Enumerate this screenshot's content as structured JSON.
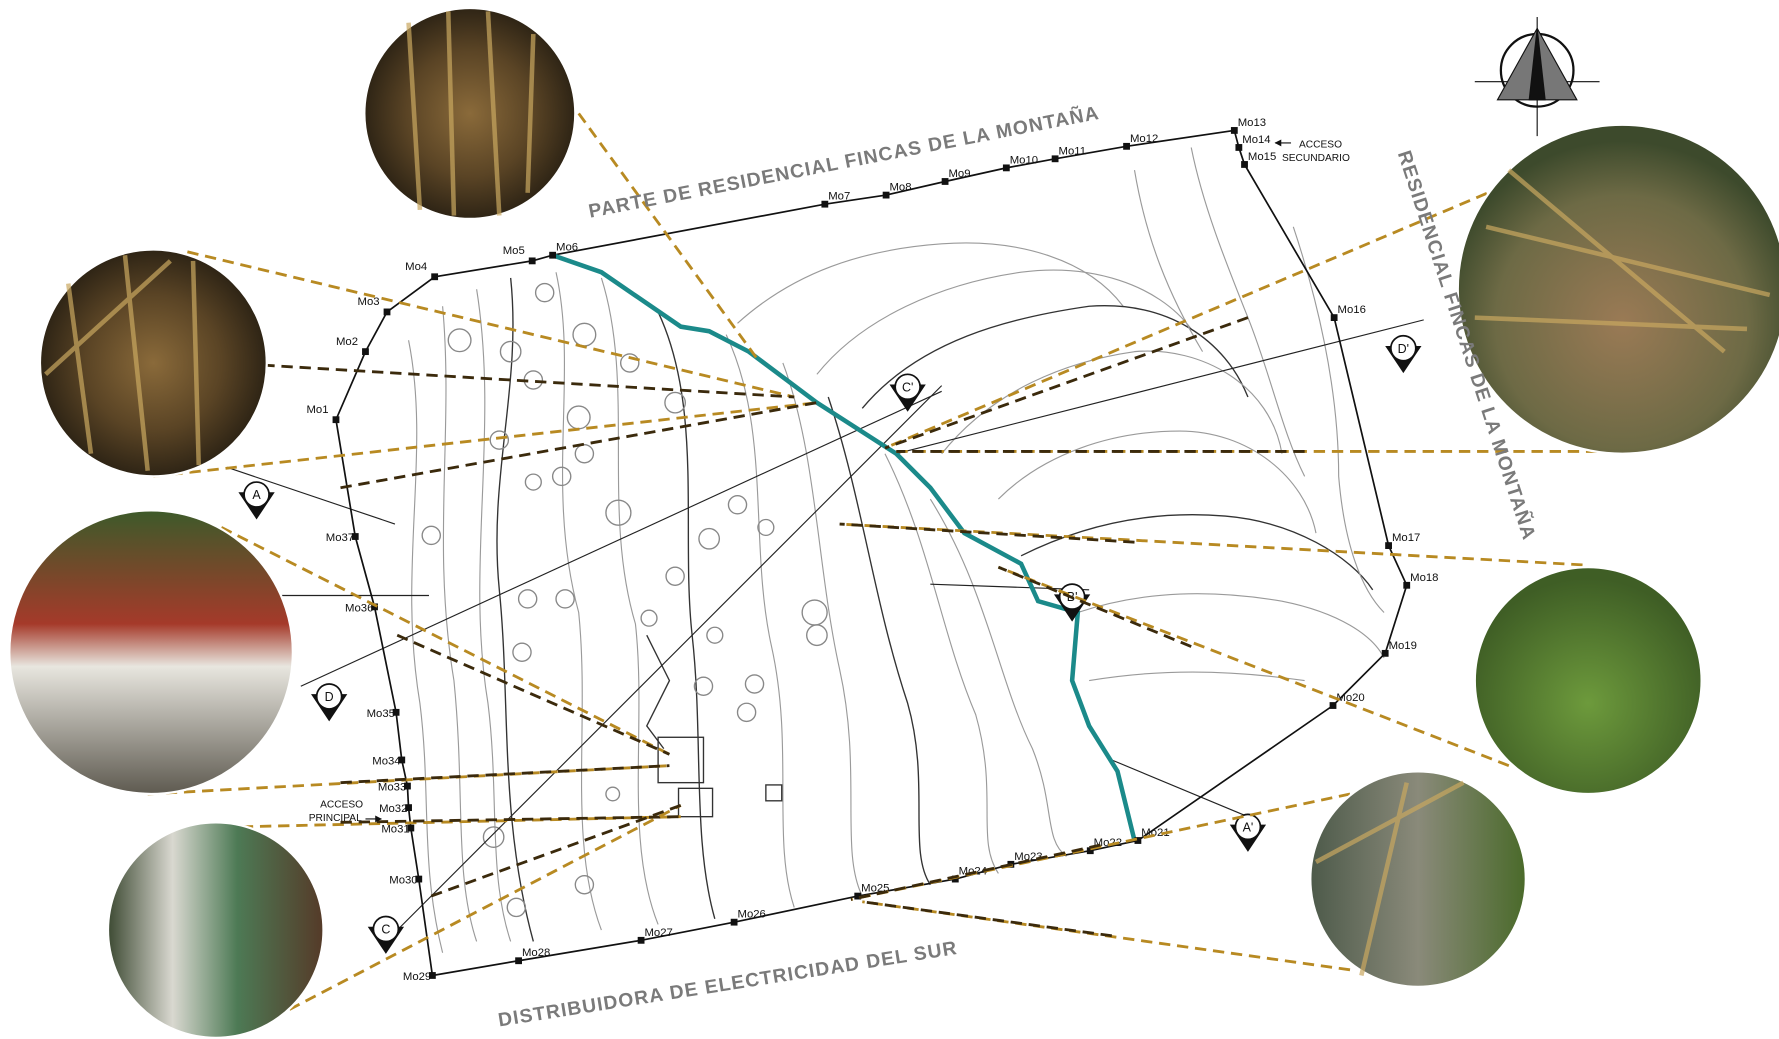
{
  "neighbors": [
    "PARTE DE RESIDENCIAL FINCAS DE LA MONTAÑA",
    "RESIDENCIAL FINCAS DE LA MONTAÑA",
    "DISTRIBUIDORA DE ELECTRICIDAD  DEL SUR"
  ],
  "access": [
    {
      "line1": "ACCESO",
      "line2": "SECUNDARIO"
    },
    {
      "line1": "ACCESO",
      "line2": "PRINCIPAL"
    }
  ],
  "monuments": [
    "Mo1",
    "Mo2",
    "Mo3",
    "Mo4",
    "Mo5",
    "Mo6",
    "Mo7",
    "Mo8",
    "Mo9",
    "Mo10",
    "Mo11",
    "Mo12",
    "Mo13",
    "Mo14",
    "Mo15",
    "Mo16",
    "Mo17",
    "Mo18",
    "Mo19",
    "Mo20",
    "Mo21",
    "Mo22",
    "Mo23",
    "Mo24",
    "Mo25",
    "Mo26",
    "Mo27",
    "Mo28",
    "Mo29",
    "Mo30",
    "Mo31",
    "Mo32",
    "Mo33",
    "Mo34",
    "Mo35",
    "Mo36",
    "Mo37"
  ],
  "sections": [
    "A",
    "A'",
    "B'",
    "C",
    "C'",
    "D",
    "D'"
  ]
}
